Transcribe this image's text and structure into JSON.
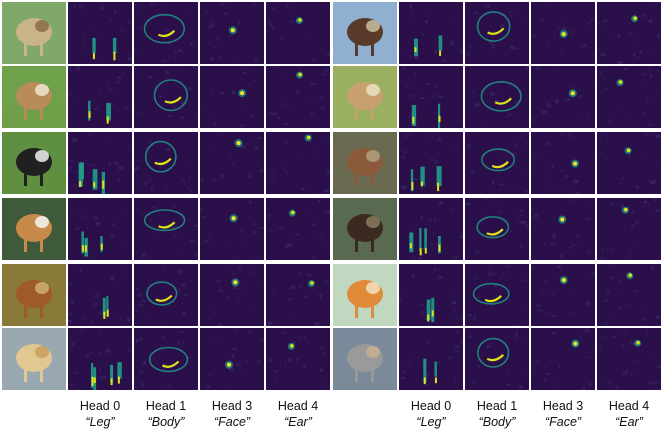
{
  "groups": [
    {
      "rows": [
        {
          "photo": "monkey-photo"
        },
        {
          "photo": "cow-photo"
        },
        {
          "photo": "holstein-cow-photo"
        },
        {
          "photo": "beagle-dog-photo"
        },
        {
          "photo": "brown-dog-photo"
        },
        {
          "photo": "two-puppies-photo"
        }
      ]
    },
    {
      "rows": [
        {
          "photo": "horse-photo"
        },
        {
          "photo": "deer-photo"
        },
        {
          "photo": "standing-deer-photo"
        },
        {
          "photo": "donkeys-photo"
        },
        {
          "photo": "shiba-puppy-photo"
        },
        {
          "photo": "koala-photo"
        }
      ]
    }
  ],
  "heads": [
    {
      "name": "Head 0",
      "part": "“Leg”"
    },
    {
      "name": "Head 1",
      "part": "“Body”"
    },
    {
      "name": "Head 3",
      "part": "“Face”"
    },
    {
      "name": "Head 4",
      "part": "“Ear”"
    }
  ],
  "colors": {
    "background_dark": "#2a0f4a",
    "highlight_mid": "#1f9e89",
    "highlight_bright": "#dde318",
    "highlight_peak": "#fde725"
  }
}
